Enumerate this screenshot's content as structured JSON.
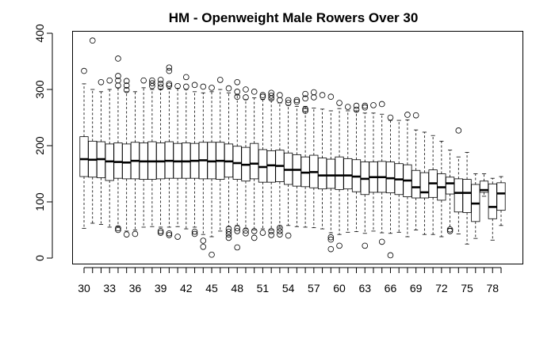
{
  "chart_data": {
    "type": "boxplot",
    "title": "HM - Openweight Male Rowers Over 30",
    "xlabel": "",
    "ylabel": "",
    "ylim": [
      0,
      400
    ],
    "yticks": [
      0,
      100,
      200,
      300,
      400
    ],
    "grid": false,
    "categories": [
      30,
      31,
      32,
      33,
      34,
      35,
      36,
      37,
      38,
      39,
      40,
      41,
      42,
      43,
      44,
      45,
      46,
      47,
      48,
      49,
      50,
      51,
      52,
      53,
      54,
      55,
      56,
      57,
      58,
      59,
      60,
      61,
      62,
      63,
      64,
      65,
      66,
      67,
      68,
      69,
      70,
      71,
      72,
      73,
      74,
      75,
      76,
      77,
      78,
      79
    ],
    "category_labels_shown": [
      "30",
      "33",
      "36",
      "39",
      "42",
      "45",
      "48",
      "51",
      "54",
      "57",
      "60",
      "63",
      "66",
      "69",
      "72",
      "75",
      "78"
    ],
    "series": [
      {
        "values": [
          {
            "x": 30,
            "whisker_low": 53,
            "q1": 145,
            "median": 176,
            "q3": 216,
            "whisker_high": 310,
            "outliers": [
              333
            ]
          },
          {
            "x": 31,
            "whisker_low": 62,
            "q1": 144,
            "median": 175,
            "q3": 208,
            "whisker_high": 300,
            "outliers": [
              387
            ]
          },
          {
            "x": 32,
            "whisker_low": 60,
            "q1": 143,
            "median": 176,
            "q3": 207,
            "whisker_high": 296,
            "outliers": [
              313
            ]
          },
          {
            "x": 33,
            "whisker_low": 55,
            "q1": 138,
            "median": 172,
            "q3": 203,
            "whisker_high": 300,
            "outliers": [
              316
            ]
          },
          {
            "x": 34,
            "whisker_low": 56,
            "q1": 142,
            "median": 171,
            "q3": 205,
            "whisker_high": 303,
            "outliers": [
              355,
              324,
              316,
              307,
              53,
              50
            ]
          },
          {
            "x": 35,
            "whisker_low": 48,
            "q1": 141,
            "median": 170,
            "q3": 203,
            "whisker_high": 296,
            "outliers": [
              315,
              307,
              299,
              42
            ]
          },
          {
            "x": 36,
            "whisker_low": 50,
            "q1": 141,
            "median": 173,
            "q3": 206,
            "whisker_high": 296,
            "outliers": [
              43
            ]
          },
          {
            "x": 37,
            "whisker_low": 55,
            "q1": 140,
            "median": 172,
            "q3": 205,
            "whisker_high": 303,
            "outliers": [
              316
            ]
          },
          {
            "x": 38,
            "whisker_low": 56,
            "q1": 140,
            "median": 172,
            "q3": 207,
            "whisker_high": 300,
            "outliers": [
              316,
              311,
              306
            ]
          },
          {
            "x": 39,
            "whisker_low": 55,
            "q1": 141,
            "median": 172,
            "q3": 205,
            "whisker_high": 301,
            "outliers": [
              317,
              310,
              304,
              48,
              45
            ]
          },
          {
            "x": 40,
            "whisker_low": 55,
            "q1": 142,
            "median": 173,
            "q3": 207,
            "whisker_high": 301,
            "outliers": [
              339,
              333,
              310,
              307,
              44,
              41
            ]
          },
          {
            "x": 41,
            "whisker_low": 56,
            "q1": 142,
            "median": 172,
            "q3": 204,
            "whisker_high": 302,
            "outliers": [
              306,
              38
            ]
          },
          {
            "x": 42,
            "whisker_low": 52,
            "q1": 142,
            "median": 172,
            "q3": 205,
            "whisker_high": 300,
            "outliers": [
              322,
              305
            ]
          },
          {
            "x": 43,
            "whisker_low": 55,
            "q1": 142,
            "median": 173,
            "q3": 204,
            "whisker_high": 296,
            "outliers": [
              308,
              47,
              43
            ]
          },
          {
            "x": 44,
            "whisker_low": 42,
            "q1": 141,
            "median": 174,
            "q3": 206,
            "whisker_high": 294,
            "outliers": [
              305,
              31,
              20
            ]
          },
          {
            "x": 45,
            "whisker_low": 38,
            "q1": 141,
            "median": 172,
            "q3": 206,
            "whisker_high": 296,
            "outliers": [
              303,
              6
            ]
          },
          {
            "x": 46,
            "whisker_low": 48,
            "q1": 140,
            "median": 173,
            "q3": 206,
            "whisker_high": 300,
            "outliers": [
              317
            ]
          },
          {
            "x": 47,
            "whisker_low": 56,
            "q1": 144,
            "median": 172,
            "q3": 203,
            "whisker_high": 294,
            "outliers": [
              302,
              52,
              47,
              42,
              36
            ]
          },
          {
            "x": 48,
            "whisker_low": 58,
            "q1": 140,
            "median": 169,
            "q3": 199,
            "whisker_high": 290,
            "outliers": [
              313,
              296,
              287,
              53,
              48,
              19
            ]
          },
          {
            "x": 49,
            "whisker_low": 52,
            "q1": 137,
            "median": 166,
            "q3": 197,
            "whisker_high": 282,
            "outliers": [
              300,
              286,
              49,
              44
            ]
          },
          {
            "x": 50,
            "whisker_low": 50,
            "q1": 141,
            "median": 168,
            "q3": 204,
            "whisker_high": 285,
            "outliers": [
              296,
              48,
              36
            ]
          },
          {
            "x": 51,
            "whisker_low": 52,
            "q1": 135,
            "median": 162,
            "q3": 193,
            "whisker_high": 282,
            "outliers": [
              290,
              287,
              45
            ]
          },
          {
            "x": 52,
            "whisker_low": 50,
            "q1": 135,
            "median": 165,
            "q3": 191,
            "whisker_high": 282,
            "outliers": [
              294,
              289,
              284,
              48,
              41
            ]
          },
          {
            "x": 53,
            "whisker_low": 55,
            "q1": 136,
            "median": 164,
            "q3": 192,
            "whisker_high": 276,
            "outliers": [
              290,
              281,
              54,
              48,
              42
            ]
          },
          {
            "x": 54,
            "whisker_low": 58,
            "q1": 131,
            "median": 157,
            "q3": 187,
            "whisker_high": 272,
            "outliers": [
              281,
              276,
              40
            ]
          },
          {
            "x": 55,
            "whisker_low": 56,
            "q1": 128,
            "median": 157,
            "q3": 184,
            "whisker_high": 270,
            "outliers": [
              281,
              278
            ]
          },
          {
            "x": 56,
            "whisker_low": 55,
            "q1": 127,
            "median": 152,
            "q3": 180,
            "whisker_high": 270,
            "outliers": [
              292,
              284,
              265,
              262
            ]
          },
          {
            "x": 57,
            "whisker_low": 54,
            "q1": 125,
            "median": 153,
            "q3": 183,
            "whisker_high": 267,
            "outliers": [
              295,
              286
            ]
          },
          {
            "x": 58,
            "whisker_low": 52,
            "q1": 123,
            "median": 147,
            "q3": 178,
            "whisker_high": 265,
            "outliers": [
              290
            ]
          },
          {
            "x": 59,
            "whisker_low": 45,
            "q1": 124,
            "median": 147,
            "q3": 176,
            "whisker_high": 262,
            "outliers": [
              287,
              37,
              33,
              16
            ]
          },
          {
            "x": 60,
            "whisker_low": 42,
            "q1": 122,
            "median": 147,
            "q3": 180,
            "whisker_high": 266,
            "outliers": [
              276,
              22
            ]
          },
          {
            "x": 61,
            "whisker_low": 46,
            "q1": 123,
            "median": 147,
            "q3": 177,
            "whisker_high": 262,
            "outliers": [
              269
            ]
          },
          {
            "x": 62,
            "whisker_low": 47,
            "q1": 118,
            "median": 145,
            "q3": 175,
            "whisker_high": 262,
            "outliers": [
              271,
              264
            ]
          },
          {
            "x": 63,
            "whisker_low": 44,
            "q1": 113,
            "median": 141,
            "q3": 171,
            "whisker_high": 258,
            "outliers": [
              271,
              268,
              22
            ]
          },
          {
            "x": 64,
            "whisker_low": 48,
            "q1": 117,
            "median": 144,
            "q3": 171,
            "whisker_high": 258,
            "outliers": [
              272
            ]
          },
          {
            "x": 65,
            "whisker_low": 45,
            "q1": 117,
            "median": 144,
            "q3": 172,
            "whisker_high": 256,
            "outliers": [
              274,
              29
            ]
          },
          {
            "x": 66,
            "whisker_low": 44,
            "q1": 116,
            "median": 142,
            "q3": 171,
            "whisker_high": 245,
            "outliers": [
              250,
              5
            ]
          },
          {
            "x": 67,
            "whisker_low": 46,
            "q1": 113,
            "median": 140,
            "q3": 168,
            "whisker_high": 245,
            "outliers": []
          },
          {
            "x": 68,
            "whisker_low": 38,
            "q1": 109,
            "median": 138,
            "q3": 166,
            "whisker_high": 246,
            "outliers": [
              255
            ]
          },
          {
            "x": 69,
            "whisker_low": 50,
            "q1": 107,
            "median": 126,
            "q3": 156,
            "whisker_high": 228,
            "outliers": [
              254
            ]
          },
          {
            "x": 70,
            "whisker_low": 42,
            "q1": 107,
            "median": 117,
            "q3": 152,
            "whisker_high": 224,
            "outliers": []
          },
          {
            "x": 71,
            "whisker_low": 42,
            "q1": 108,
            "median": 133,
            "q3": 157,
            "whisker_high": 218,
            "outliers": []
          },
          {
            "x": 72,
            "whisker_low": 38,
            "q1": 103,
            "median": 126,
            "q3": 150,
            "whisker_high": 208,
            "outliers": []
          },
          {
            "x": 73,
            "whisker_low": 53,
            "q1": 114,
            "median": 133,
            "q3": 144,
            "whisker_high": 192,
            "outliers": [
              51,
              48
            ]
          },
          {
            "x": 74,
            "whisker_low": 43,
            "q1": 82,
            "median": 116,
            "q3": 141,
            "whisker_high": 180,
            "outliers": [
              227
            ]
          },
          {
            "x": 75,
            "whisker_low": 25,
            "q1": 81,
            "median": 116,
            "q3": 140,
            "whisker_high": 188,
            "outliers": []
          },
          {
            "x": 76,
            "whisker_low": 35,
            "q1": 65,
            "median": 97,
            "q3": 131,
            "whisker_high": 150,
            "outliers": []
          },
          {
            "x": 77,
            "whisker_low": 110,
            "q1": 117,
            "median": 121,
            "q3": 137,
            "whisker_high": 150,
            "outliers": []
          },
          {
            "x": 78,
            "whisker_low": 32,
            "q1": 70,
            "median": 91,
            "q3": 132,
            "whisker_high": 142,
            "outliers": []
          },
          {
            "x": 79,
            "whisker_low": 58,
            "q1": 85,
            "median": 115,
            "q3": 134,
            "whisker_high": 145,
            "outliers": []
          }
        ]
      }
    ]
  }
}
